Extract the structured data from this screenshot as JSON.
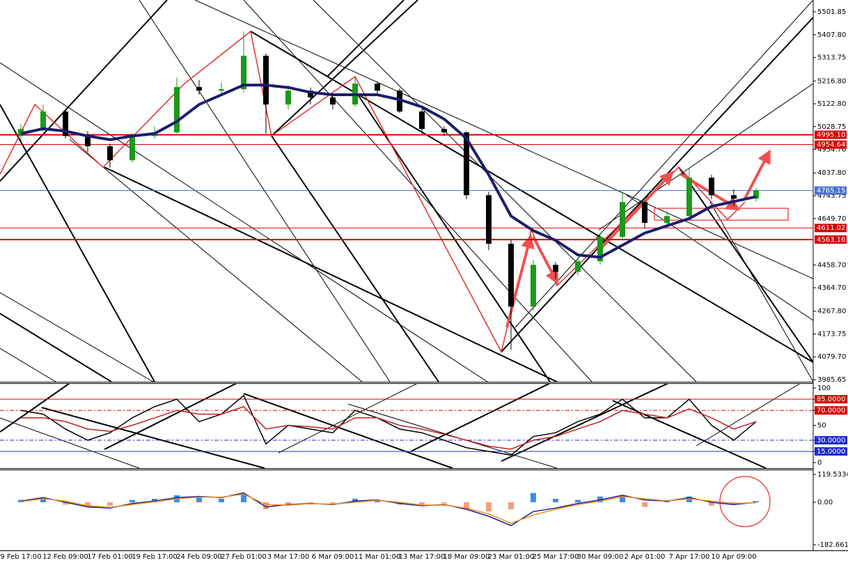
{
  "chart_data": [
    {
      "type": "candlestick",
      "categories": [
        "9 Feb 17:00",
        null,
        "12 Feb 09:00",
        null,
        "17 Feb 01:00",
        null,
        "19 Feb 17:00",
        null,
        "24 Feb 09:00",
        null,
        "27 Feb 01:00",
        null,
        "3 Mar 17:00",
        null,
        "6 Mar 09:00",
        null,
        "11 Mar 01:00",
        null,
        "13 Mar 17:00",
        null,
        "18 Mar 09:00",
        null,
        "23 Mar 01:00",
        null,
        "25 Mar 17:00",
        null,
        "30 Mar 09:00",
        null,
        "2 Apr 01:00",
        null,
        "7 Apr 17:00",
        null,
        "10 Apr 09:00",
        null
      ],
      "open": [
        4990,
        5019,
        5091,
        4990,
        4948,
        4890,
        4990,
        5005,
        5192,
        5177,
        5183,
        5321,
        5120,
        5177,
        5149,
        5120,
        5206,
        5177,
        5091,
        5019,
        5005,
        4746,
        4546,
        4287,
        4459,
        4430,
        4474,
        4574,
        4718,
        4632,
        4660,
        4818,
        4746,
        4732
      ],
      "high": [
        5040,
        5120,
        5095,
        5010,
        4960,
        5000,
        5030,
        5230,
        5220,
        5210,
        5420,
        5330,
        5200,
        5190,
        5160,
        5230,
        5215,
        5185,
        5100,
        5030,
        5010,
        4760,
        4560,
        4480,
        4470,
        4490,
        4590,
        4760,
        4725,
        4680,
        4860,
        4830,
        4770,
        4775
      ],
      "low": [
        4970,
        5005,
        4980,
        4925,
        4860,
        4880,
        4980,
        5000,
        5160,
        5160,
        5170,
        5000,
        5100,
        5120,
        5100,
        5110,
        5165,
        5085,
        5000,
        4990,
        4730,
        4520,
        4110,
        4270,
        4400,
        4415,
        4460,
        4560,
        4610,
        4620,
        4650,
        4730,
        4700,
        4720
      ],
      "close": [
        5019,
        5091,
        4990,
        4948,
        4890,
        4990,
        5005,
        5192,
        5177,
        5183,
        5321,
        5120,
        5177,
        5149,
        5120,
        5206,
        5177,
        5091,
        5019,
        5005,
        4746,
        4546,
        4287,
        4459,
        4430,
        4474,
        4574,
        4718,
        4632,
        4660,
        4818,
        4746,
        4732,
        4765
      ],
      "color_up": "#1a9a1a",
      "color_down": "#000000",
      "series": [
        {
          "color": "#1c1c6b",
          "values": [
            5000,
            5020,
            5010,
            4990,
            4975,
            4990,
            5000,
            5050,
            5120,
            5160,
            5200,
            5200,
            5190,
            5170,
            5160,
            5160,
            5160,
            5140,
            5110,
            5060,
            4980,
            4830,
            4660,
            4600,
            4560,
            4500,
            4490,
            4540,
            4590,
            4620,
            4650,
            4700,
            4720,
            4740
          ]
        }
      ],
      "ylim": [
        3985.65,
        5501.85
      ],
      "yticks": [
        5501.85,
        {
          "value": 5407.8,
          "label": "5407.80"
        },
        5313.75,
        {
          "value": 5216.8,
          "label": "5216.80"
        },
        {
          "value": 5122.8,
          "label": "5122.80"
        },
        5028.75,
        {
          "value": 4934.7,
          "label": "4934.70"
        },
        {
          "value": 4837.8,
          "label": "4837.80"
        },
        4743.75,
        {
          "value": 4649.7,
          "label": "4649.70"
        },
        {
          "value": 4458.7,
          "label": "4458.70"
        },
        {
          "value": 4364.7,
          "label": "4364.70"
        },
        {
          "value": 4267.8,
          "label": "4267.80"
        },
        4173.75,
        {
          "value": 4079.7,
          "label": "4079.70"
        },
        3985.65
      ],
      "levels": [
        {
          "value": 4995.1,
          "label": "4995.10",
          "color": "#d80000",
          "width": 2
        },
        {
          "value": 4954.64,
          "label": "4954.64",
          "color": "#d80000",
          "width": 1
        },
        {
          "value": 4765.15,
          "label": "4765.15",
          "color": "#4a6fd0",
          "width": 1
        },
        {
          "value": 4611.02,
          "label": "4611.02",
          "color": "#d80000",
          "width": 1
        },
        {
          "value": 4563.16,
          "label": "4563.16",
          "color": "#d80000",
          "width": 2
        }
      ]
    },
    {
      "type": "line",
      "series": [
        {
          "color": "#000000",
          "values": [
            70,
            65,
            45,
            30,
            40,
            60,
            75,
            85,
            55,
            65,
            90,
            25,
            50,
            45,
            40,
            70,
            60,
            45,
            40,
            30,
            20,
            15,
            10,
            35,
            40,
            55,
            65,
            85,
            60,
            60,
            85,
            50,
            30,
            55
          ]
        },
        {
          "color": "#c02020",
          "values": [
            60,
            60,
            55,
            45,
            42,
            50,
            60,
            70,
            65,
            65,
            75,
            45,
            50,
            48,
            45,
            60,
            60,
            50,
            45,
            38,
            30,
            22,
            18,
            30,
            35,
            45,
            55,
            70,
            65,
            60,
            72,
            60,
            45,
            55
          ]
        }
      ],
      "ylim": [
        0,
        100
      ],
      "yticks": [
        100,
        {
          "value": 85,
          "label": "85.0000",
          "color": "#d80000",
          "dash": false
        },
        {
          "value": 70,
          "label": "70.0000",
          "color": "#d80000",
          "dash": true
        },
        50,
        {
          "value": 30,
          "label": "30.0000",
          "color": "#1a2ad0",
          "dash": true
        },
        {
          "value": 15,
          "label": "15.0000",
          "color": "#1a2ad0",
          "dash": false
        },
        0
      ]
    },
    {
      "type": "bar",
      "values": [
        10,
        15,
        -10,
        -20,
        -15,
        10,
        15,
        30,
        20,
        15,
        35,
        -30,
        -15,
        -10,
        -10,
        15,
        10,
        -10,
        -15,
        -5,
        -30,
        -40,
        -30,
        40,
        15,
        10,
        25,
        30,
        -20,
        10,
        25,
        -15,
        -10,
        5
      ],
      "color_positive": "#3a8ee6",
      "color_negative": "#f0a080",
      "series": [
        {
          "color": "#1c1c8b",
          "values": [
            5,
            20,
            0,
            -20,
            -25,
            -5,
            5,
            20,
            25,
            20,
            40,
            -20,
            -10,
            -5,
            -10,
            5,
            10,
            -5,
            -15,
            -10,
            -30,
            -60,
            -100,
            -40,
            -25,
            -5,
            10,
            30,
            10,
            5,
            20,
            0,
            -10,
            0
          ]
        },
        {
          "color": "#f08c1c",
          "values": [
            3,
            15,
            5,
            -15,
            -22,
            -10,
            2,
            15,
            22,
            22,
            35,
            -10,
            -12,
            -6,
            -8,
            0,
            8,
            0,
            -12,
            -12,
            -25,
            -50,
            -90,
            -55,
            -30,
            -10,
            5,
            25,
            15,
            6,
            15,
            5,
            -5,
            -2
          ]
        }
      ],
      "ylim": [
        -182.6615,
        119.5334
      ],
      "yticks": [
        119.5334,
        {
          "value": 0,
          "label": "0.00"
        },
        -182.6615
      ]
    }
  ]
}
